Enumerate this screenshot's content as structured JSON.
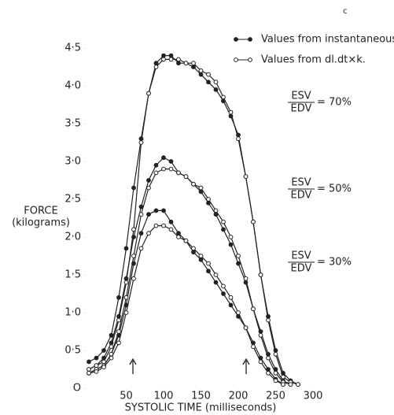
{
  "chart_data": {
    "type": "line",
    "panel_letter": "c",
    "x_label": "SYSTOLIC TIME (milliseconds)",
    "y_label": [
      "FORCE",
      "(kilograms)"
    ],
    "xlim": [
      0,
      300
    ],
    "ylim": [
      0,
      4.5
    ],
    "xticks": [
      50,
      100,
      150,
      200,
      250,
      300
    ],
    "yticks": [
      {
        "value": 0,
        "label": "O"
      },
      {
        "value": 0.5,
        "label": "0·5"
      },
      {
        "value": 1.0,
        "label": "1·0"
      },
      {
        "value": 1.5,
        "label": "1·5"
      },
      {
        "value": 2.0,
        "label": "2·0"
      },
      {
        "value": 2.5,
        "label": "2·5"
      },
      {
        "value": 3.0,
        "label": "3·0"
      },
      {
        "value": 3.5,
        "label": "3·5"
      },
      {
        "value": 4.0,
        "label": "4·0"
      },
      {
        "value": 4.5,
        "label": "4·5"
      }
    ],
    "x": [
      0,
      10,
      20,
      30,
      40,
      50,
      60,
      70,
      80,
      90,
      100,
      110,
      120,
      130,
      140,
      150,
      160,
      170,
      180,
      190,
      200,
      210,
      220,
      230,
      240,
      250,
      260,
      270,
      280
    ],
    "series": [
      {
        "name": "Values from instantaneous ejection rate.",
        "color": "#222",
        "marker": "filled",
        "curves": [
          {
            "values": [
              0.35,
              0.4,
              0.5,
              0.7,
              1.2,
              1.85,
              2.65,
              3.3,
              3.9,
              4.3,
              4.4,
              4.4,
              4.3,
              4.3,
              4.25,
              4.15,
              4.05,
              3.95,
              3.8,
              3.6,
              3.35,
              2.8,
              2.2,
              1.5,
              0.95,
              0.5,
              0.2,
              0.1,
              0.05
            ]
          },
          {
            "values": [
              0.25,
              0.3,
              0.4,
              0.6,
              0.95,
              1.45,
              2.0,
              2.4,
              2.75,
              2.95,
              3.05,
              3.0,
              2.85,
              2.8,
              2.7,
              2.6,
              2.45,
              2.3,
              2.1,
              1.9,
              1.65,
              1.4,
              1.05,
              0.75,
              0.45,
              0.25,
              0.1,
              0.05,
              null
            ]
          },
          {
            "values": [
              0.2,
              0.25,
              0.3,
              0.45,
              0.7,
              1.1,
              1.65,
              2.05,
              2.3,
              2.35,
              2.35,
              2.2,
              2.05,
              1.95,
              1.8,
              1.7,
              1.55,
              1.4,
              1.25,
              1.1,
              0.95,
              0.8,
              0.6,
              0.4,
              0.25,
              0.12,
              0.05,
              null,
              null
            ]
          }
        ]
      },
      {
        "name": "Values from dl.dt×k.",
        "color": "#222",
        "marker": "open",
        "curves": [
          {
            "values": [
              0.25,
              0.3,
              0.35,
              0.55,
              0.9,
              1.4,
              2.1,
              3.25,
              3.9,
              4.25,
              4.35,
              4.35,
              4.35,
              4.3,
              4.3,
              4.2,
              4.15,
              4.05,
              3.85,
              3.65,
              3.3,
              2.8,
              2.2,
              1.5,
              0.9,
              0.45,
              0.15,
              0.08,
              0.05
            ]
          },
          {
            "values": [
              0.2,
              0.25,
              0.3,
              0.45,
              0.75,
              1.2,
              1.75,
              2.3,
              2.65,
              2.85,
              2.9,
              2.9,
              2.85,
              2.8,
              2.7,
              2.65,
              2.5,
              2.35,
              2.2,
              2.0,
              1.75,
              1.45,
              1.05,
              0.7,
              0.4,
              0.2,
              0.08,
              0.05,
              null
            ]
          },
          {
            "values": [
              0.2,
              0.22,
              0.28,
              0.4,
              0.6,
              1.0,
              1.45,
              1.85,
              2.05,
              2.15,
              2.15,
              2.1,
              2.0,
              1.95,
              1.85,
              1.75,
              1.65,
              1.5,
              1.35,
              1.2,
              1.0,
              0.8,
              0.55,
              0.35,
              0.2,
              0.1,
              0.05,
              null,
              null
            ]
          }
        ]
      }
    ],
    "annotations": [
      {
        "numerator": "ESV",
        "denominator": "EDV",
        "text": "= 70%"
      },
      {
        "numerator": "ESV",
        "denominator": "EDV",
        "text": "= 50%"
      },
      {
        "numerator": "ESV",
        "denominator": "EDV",
        "text": "= 30%"
      }
    ]
  }
}
